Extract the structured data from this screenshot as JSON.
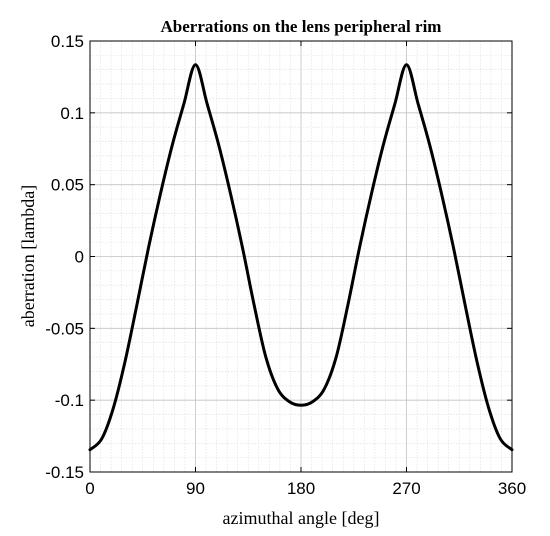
{
  "chart_data": {
    "type": "line",
    "title": "Aberrations on the lens peripheral rim",
    "xlabel": "azimuthal angle [deg]",
    "ylabel": "aberration [lambda]",
    "xlim": [
      0,
      360
    ],
    "ylim": [
      -0.15,
      0.15
    ],
    "x_ticks": [
      0,
      90,
      180,
      270,
      360
    ],
    "x_tick_labels": [
      "0",
      "90",
      "180",
      "270",
      "360"
    ],
    "y_ticks": [
      -0.15,
      -0.1,
      -0.05,
      0,
      0.05,
      0.1,
      0.15
    ],
    "y_tick_labels": [
      "-0.15",
      "-0.1",
      "-0.05",
      "0",
      "0.05",
      "0.1",
      "0.15"
    ],
    "grid": true,
    "minor_grid": true,
    "series": [
      {
        "color": "#000000",
        "x": [
          0,
          10,
          20,
          30,
          40,
          50,
          60,
          70,
          80,
          90,
          100,
          110,
          120,
          130,
          140,
          150,
          160,
          170,
          180,
          190,
          200,
          210,
          220,
          230,
          240,
          250,
          260,
          270,
          280,
          290,
          300,
          310,
          320,
          330,
          340,
          350,
          360
        ],
        "y": [
          -0.1345,
          -0.1269,
          -0.1052,
          -0.0727,
          -0.0337,
          0.0065,
          0.0433,
          0.077,
          0.106,
          0.1335,
          0.106,
          0.077,
          0.0433,
          0.0065,
          -0.0337,
          -0.07,
          -0.092,
          -0.101,
          -0.1035,
          -0.101,
          -0.092,
          -0.07,
          -0.0337,
          0.0065,
          0.0433,
          0.077,
          0.106,
          0.1335,
          0.106,
          0.077,
          0.0433,
          0.0065,
          -0.0337,
          -0.0727,
          -0.1052,
          -0.1269,
          -0.1345
        ]
      }
    ]
  }
}
